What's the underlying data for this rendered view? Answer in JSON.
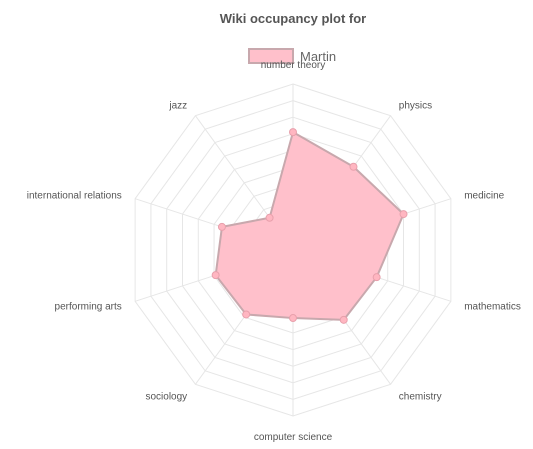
{
  "chart_data": {
    "type": "radar",
    "title": "Wiki occupancy plot for",
    "axes": [
      "number theory",
      "physics",
      "medicine",
      "mathematics",
      "chemistry",
      "computer science",
      "sociology",
      "performing arts",
      "international relations",
      "jazz"
    ],
    "series": [
      {
        "name": "Martin",
        "values": [
          0.71,
          0.62,
          0.7,
          0.53,
          0.52,
          0.41,
          0.48,
          0.49,
          0.45,
          0.24
        ]
      }
    ],
    "range": [
      0,
      1
    ],
    "grid_levels": 10,
    "grid": true,
    "legend_position": "top",
    "colors": {
      "series_fill": "#ffc0cb",
      "series_stroke": "#c8a8ad",
      "point_fill": "#ffb6c1",
      "point_stroke": "#e8a0ac",
      "grid": "#e6e6e6"
    }
  }
}
